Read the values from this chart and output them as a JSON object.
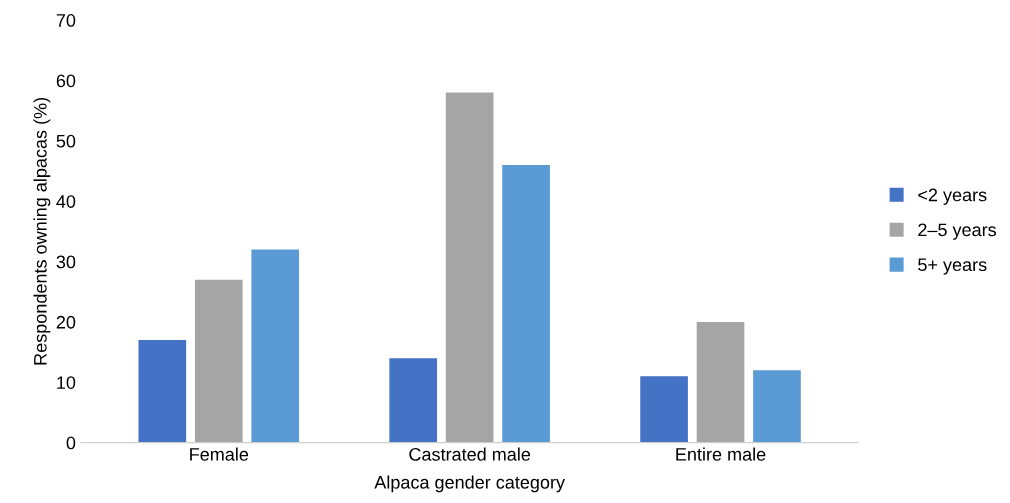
{
  "chart_data": {
    "type": "bar",
    "xlabel": "Alpaca gender category",
    "ylabel": "Respondents owning alpacas (%)",
    "categories": [
      "Female",
      "Castrated male",
      "Entire male"
    ],
    "series": [
      {
        "name": "<2 years",
        "color": "#4472c4",
        "values": [
          17,
          14,
          11
        ]
      },
      {
        "name": "2–5 years",
        "color": "#a5a5a5",
        "values": [
          27,
          58,
          20
        ]
      },
      {
        "name": "5+ years",
        "color": "#5b9bd5",
        "values": [
          32,
          46,
          12
        ]
      }
    ],
    "ylim": [
      0,
      70
    ],
    "yticks": [
      0,
      10,
      20,
      30,
      40,
      50,
      60,
      70
    ],
    "grid": false,
    "legend": "right"
  }
}
